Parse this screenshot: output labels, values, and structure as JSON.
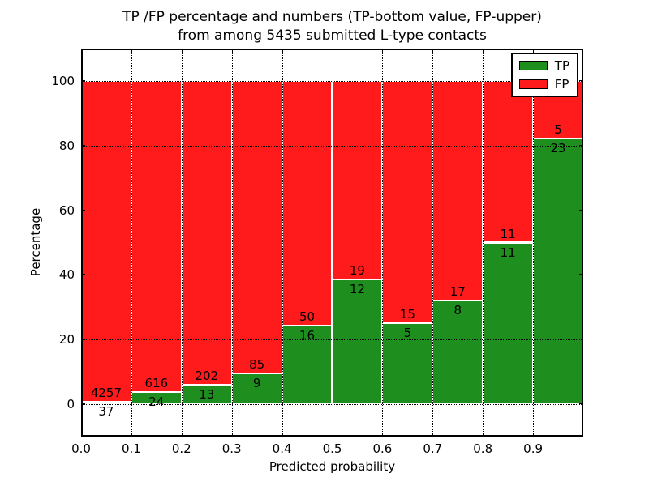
{
  "figure": {
    "title_line1": "TP /FP percentage and numbers (TP-bottom value, FP-upper)",
    "title_line2": "from among 5435 submitted L-type contacts"
  },
  "chart_data": {
    "type": "bar",
    "stacked": true,
    "normalized_to_percent": true,
    "title": "TP /FP percentage and numbers (TP-bottom value, FP-upper)\nfrom among 5435 submitted L-type contacts",
    "xlabel": "Predicted probability",
    "ylabel": "Percentage",
    "total_contacts": 5435,
    "bin_width": 0.1,
    "categories": [
      "0.0",
      "0.1",
      "0.2",
      "0.3",
      "0.4",
      "0.5",
      "0.6",
      "0.7",
      "0.8",
      "0.9"
    ],
    "series": [
      {
        "name": "TP",
        "color": "#1e8e1e",
        "counts": [
          37,
          24,
          13,
          9,
          16,
          12,
          5,
          8,
          11,
          23
        ]
      },
      {
        "name": "FP",
        "color": "#ff1b1b",
        "counts": [
          4257,
          616,
          202,
          85,
          50,
          19,
          15,
          17,
          11,
          5
        ]
      }
    ],
    "tp_percent": [
      0.86,
      3.75,
      6.05,
      9.57,
      24.24,
      38.71,
      25.0,
      32.0,
      50.0,
      82.14
    ],
    "bar_top_percent": 100,
    "ylim": [
      -10,
      110
    ],
    "yticks": [
      0,
      20,
      40,
      60,
      80,
      100
    ],
    "xticks": [
      "0.0",
      "0.1",
      "0.2",
      "0.3",
      "0.4",
      "0.5",
      "0.6",
      "0.7",
      "0.8",
      "0.9"
    ],
    "grid": true,
    "grid_style": "dotted",
    "legend": {
      "position": "upper right",
      "entries": [
        {
          "label": "TP",
          "color": "#1e8e1e"
        },
        {
          "label": "FP",
          "color": "#ff1b1b"
        }
      ]
    }
  }
}
